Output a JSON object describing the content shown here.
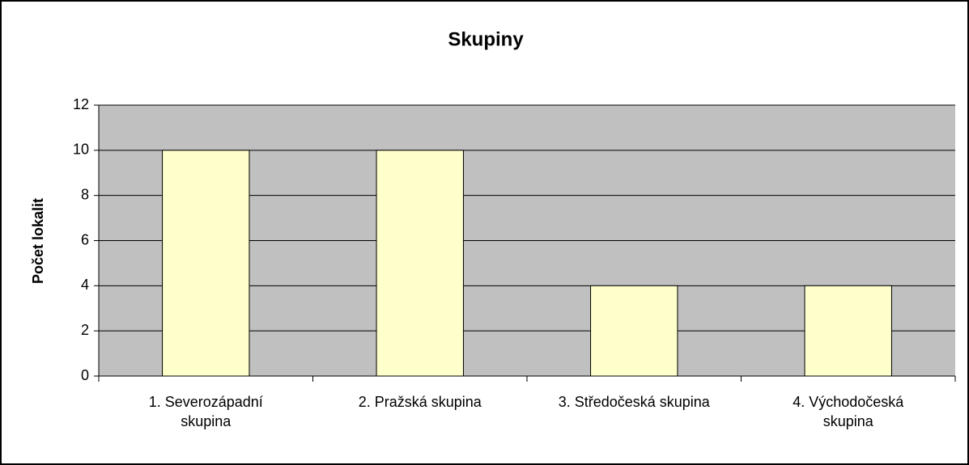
{
  "chart_data": {
    "type": "bar",
    "title": "Skupiny",
    "y_label": "Počet lokalit",
    "categories": [
      "1. Severozápadní skupina",
      "2. Pražská skupina",
      "3. Středočeská skupina",
      "4. Východočeská skupina"
    ],
    "values": [
      10,
      10,
      4,
      4
    ],
    "color": "#ffffcc",
    "plot_background": "#c0c0c0",
    "ylim": [
      0,
      12
    ],
    "yticks": [
      0,
      2,
      4,
      6,
      8,
      10,
      12
    ],
    "grid": true
  }
}
